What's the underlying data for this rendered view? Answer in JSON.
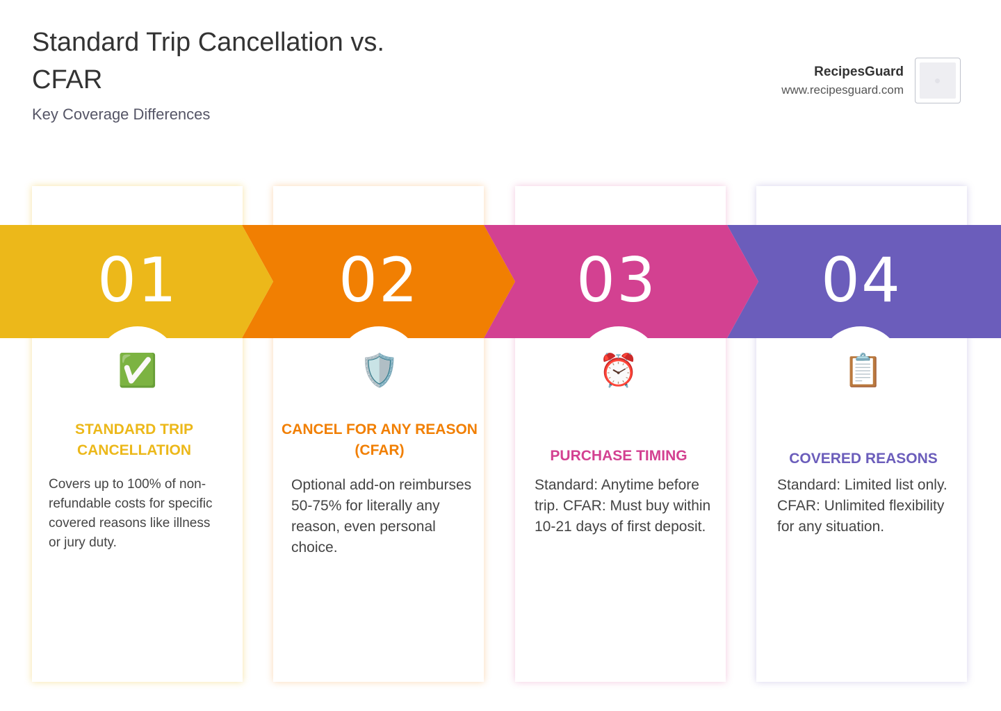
{
  "header": {
    "title": "Standard Trip Cancellation vs. CFAR",
    "subtitle": "Key Coverage Differences"
  },
  "brand": {
    "name": "RecipesGuard",
    "url": "www.recipesguard.com"
  },
  "colors": {
    "step1": "#ECB81A",
    "step2": "#F17F02",
    "step3": "#D34191",
    "step4": "#6B5DBB"
  },
  "steps": [
    {
      "number": "01",
      "icon": "check-mark-button-icon",
      "glyph": "✅",
      "heading": "STANDARD TRIP CANCELLATION",
      "text": "Covers up to 100% of non-refundable costs for specific covered reasons like illness or jury duty."
    },
    {
      "number": "02",
      "icon": "shield-icon",
      "glyph": "🛡️",
      "heading": "CANCEL FOR ANY REASON (CFAR)",
      "text": "Optional add-on reimburses 50-75% for literally any reason, even personal choice."
    },
    {
      "number": "03",
      "icon": "alarm-clock-icon",
      "glyph": "⏰",
      "heading": "PURCHASE TIMING",
      "text": "Standard: Anytime before trip. CFAR: Must buy within 10-21 days of first deposit."
    },
    {
      "number": "04",
      "icon": "clipboard-icon",
      "glyph": "📋",
      "heading": "COVERED REASONS",
      "text": "Standard: Limited list only. CFAR: Unlimited flexibility for any situation."
    }
  ]
}
